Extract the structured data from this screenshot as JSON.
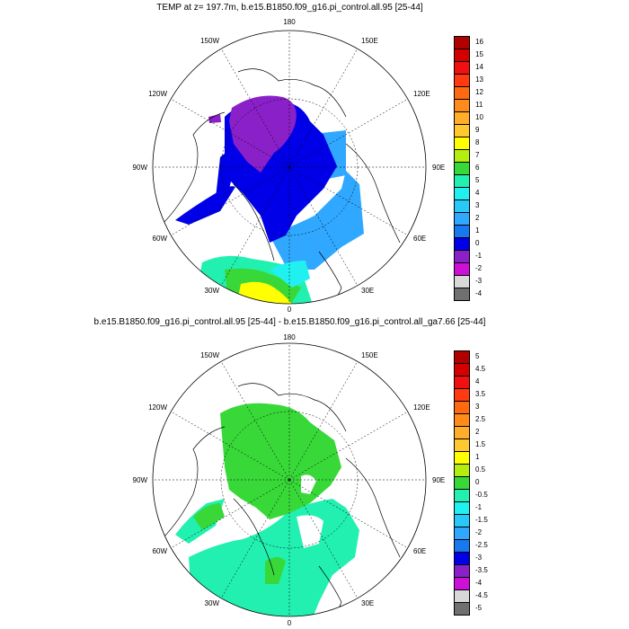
{
  "panels": [
    {
      "title": "TEMP at z= 197.7m, b.e15.B1850.f09_g16.pi_control.all.95 [25-44]",
      "colorbar": {
        "labels": [
          "16",
          "15",
          "14",
          "13",
          "12",
          "11",
          "10",
          "9",
          "8",
          "7",
          "6",
          "5",
          "4",
          "3",
          "2",
          "1",
          "0",
          "-1",
          "-2",
          "-3",
          "-4"
        ],
        "colors": [
          "#b00000",
          "#d40000",
          "#f01010",
          "#ff3a10",
          "#ff6a10",
          "#ff8c1a",
          "#ffad2a",
          "#ffc830",
          "#ffff00",
          "#b4ee10",
          "#38d838",
          "#22f0b0",
          "#20f0f0",
          "#28c8f8",
          "#30a8ff",
          "#1878f0",
          "#0000e8",
          "#8a20c8",
          "#cc10d8",
          "#d8d8d8",
          "#707070"
        ]
      }
    },
    {
      "title": "b.e15.B1850.f09_g16.pi_control.all.95 [25-44] - b.e15.B1850.f09_g16.pi_control.all_ga7.66 [25-44]",
      "colorbar": {
        "labels": [
          "5",
          "4.5",
          "4",
          "3.5",
          "3",
          "2.5",
          "2",
          "1.5",
          "1",
          "0.5",
          "0",
          "-0.5",
          "-1",
          "-1.5",
          "-2",
          "-2.5",
          "-3",
          "-3.5",
          "-4",
          "-4.5",
          "-5"
        ],
        "colors": [
          "#b00000",
          "#d40000",
          "#f01010",
          "#ff3a10",
          "#ff6a10",
          "#ff8c1a",
          "#ffad2a",
          "#ffc830",
          "#ffff00",
          "#b4ee10",
          "#38d838",
          "#22f0b0",
          "#20f0f0",
          "#28c8f8",
          "#30a8ff",
          "#1878f0",
          "#0000e8",
          "#8a20c8",
          "#cc10d8",
          "#d8d8d8",
          "#707070"
        ]
      }
    }
  ],
  "longitudes": [
    "180",
    "150E",
    "120E",
    "90E",
    "60E",
    "30E",
    "0",
    "30W",
    "60W",
    "90W",
    "120W",
    "150W"
  ]
}
